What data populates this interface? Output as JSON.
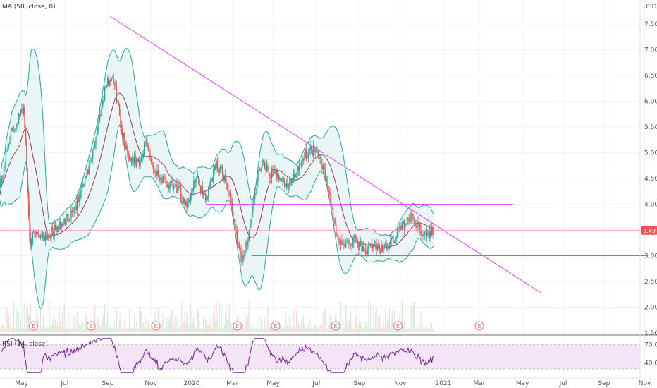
{
  "chart_data": {
    "type": "candlestick",
    "price_pane": {
      "indicator_label": "MA (50, close, 0)",
      "currency": "USD",
      "last_price": "3.49",
      "y_ticks": [
        {
          "value": 7.5,
          "label": "7.50"
        },
        {
          "value": 7.0,
          "label": "7.00"
        },
        {
          "value": 6.5,
          "label": "6.50"
        },
        {
          "value": 6.0,
          "label": "6.00"
        },
        {
          "value": 5.5,
          "label": "5.50"
        },
        {
          "value": 5.0,
          "label": "5.00"
        },
        {
          "value": 4.5,
          "label": "4.50"
        },
        {
          "value": 4.0,
          "label": "4.00"
        },
        {
          "value": 3.5,
          "label": "3.50"
        },
        {
          "value": 3.0,
          "label": "3.00"
        },
        {
          "value": 2.5,
          "label": "2.50"
        },
        {
          "value": 2.0,
          "label": "2.00"
        },
        {
          "value": 1.5,
          "label": "1.50"
        }
      ],
      "ylim": [
        1.5,
        7.9
      ],
      "trendlines": [
        {
          "kind": "downtrend",
          "from": {
            "t": 0.23,
            "price": 7.65
          },
          "to": {
            "t": 1.13,
            "price": 2.27
          },
          "color": "#e040fb"
        },
        {
          "kind": "resistance",
          "from": {
            "t": 0.43,
            "price": 4.0
          },
          "to": {
            "t": 1.07,
            "price": 4.0
          },
          "color": "#e040fb"
        },
        {
          "kind": "support",
          "from": {
            "t": 0.525,
            "price": 3.0
          },
          "to": {
            "t": 1.35,
            "price": 3.0
          },
          "color": "#e040fb"
        }
      ],
      "horizontal_line": {
        "price": 3.49,
        "color": "#f48fb1"
      },
      "earnings_markers": [
        {
          "label": "E",
          "t": 0.07
        },
        {
          "label": "E",
          "t": 0.19
        },
        {
          "label": "E",
          "t": 0.325
        },
        {
          "label": "E",
          "t": 0.495
        },
        {
          "label": "E",
          "t": 0.575
        },
        {
          "label": "E",
          "t": 0.7
        },
        {
          "label": "E",
          "t": 0.83
        },
        {
          "label": "E",
          "t": 1.0
        }
      ],
      "keypoints": [
        [
          0.0,
          4.3
        ],
        [
          0.02,
          5.3
        ],
        [
          0.05,
          5.9
        ],
        [
          0.062,
          3.3
        ],
        [
          0.075,
          3.4
        ],
        [
          0.1,
          3.4
        ],
        [
          0.13,
          3.6
        ],
        [
          0.16,
          4.0
        ],
        [
          0.19,
          4.8
        ],
        [
          0.22,
          6.3
        ],
        [
          0.235,
          6.5
        ],
        [
          0.245,
          6.0
        ],
        [
          0.255,
          5.4
        ],
        [
          0.27,
          4.9
        ],
        [
          0.29,
          4.8
        ],
        [
          0.305,
          5.2
        ],
        [
          0.32,
          4.7
        ],
        [
          0.345,
          4.4
        ],
        [
          0.37,
          4.3
        ],
        [
          0.39,
          4.0
        ],
        [
          0.41,
          4.5
        ],
        [
          0.43,
          4.1
        ],
        [
          0.45,
          4.8
        ],
        [
          0.47,
          4.5
        ],
        [
          0.49,
          3.6
        ],
        [
          0.505,
          2.8
        ],
        [
          0.52,
          3.5
        ],
        [
          0.53,
          4.1
        ],
        [
          0.545,
          4.8
        ],
        [
          0.56,
          4.6
        ],
        [
          0.58,
          4.6
        ],
        [
          0.6,
          4.3
        ],
        [
          0.62,
          4.7
        ],
        [
          0.64,
          5.0
        ],
        [
          0.66,
          5.1
        ],
        [
          0.675,
          4.7
        ],
        [
          0.69,
          4.0
        ],
        [
          0.705,
          3.3
        ],
        [
          0.72,
          3.2
        ],
        [
          0.74,
          3.3
        ],
        [
          0.76,
          3.1
        ],
        [
          0.78,
          3.2
        ],
        [
          0.8,
          3.1
        ],
        [
          0.82,
          3.3
        ],
        [
          0.84,
          3.6
        ],
        [
          0.86,
          3.75
        ],
        [
          0.875,
          3.55
        ],
        [
          0.89,
          3.4
        ],
        [
          0.905,
          3.49
        ]
      ]
    },
    "rsi_pane": {
      "label": "RSI (14, close)",
      "y_ticks": [
        {
          "value": 70,
          "label": "70.00"
        },
        {
          "value": 40,
          "label": "40.00"
        }
      ],
      "ylim": [
        22,
        82
      ],
      "band": [
        30,
        70
      ]
    },
    "x_ticks": [
      {
        "t": 0.045,
        "label": "May"
      },
      {
        "t": 0.135,
        "label": "Jul"
      },
      {
        "t": 0.225,
        "label": "Sep"
      },
      {
        "t": 0.315,
        "label": "Nov"
      },
      {
        "t": 0.4,
        "label": "2020"
      },
      {
        "t": 0.485,
        "label": "Mar"
      },
      {
        "t": 0.57,
        "label": "May"
      },
      {
        "t": 0.66,
        "label": "Jul"
      },
      {
        "t": 0.75,
        "label": "Sep"
      },
      {
        "t": 0.835,
        "label": "Nov"
      },
      {
        "t": 0.925,
        "label": "2021"
      },
      {
        "t": 1.0,
        "label": "Mar"
      },
      {
        "t": 1.09,
        "label": "May"
      },
      {
        "t": 1.175,
        "label": "Jul"
      },
      {
        "t": 1.26,
        "label": "Sep"
      },
      {
        "t": 1.345,
        "label": "Nov"
      }
    ]
  },
  "colors": {
    "up": "#26a69a",
    "down": "#ef5350",
    "bollinger": "#26a69a",
    "bollinger_fill": "#e0f2f1",
    "ma": "#8d3a5a",
    "rsi": "#7b1fa2",
    "rsi_band": "#f3e5f5",
    "marker": "#e57373"
  }
}
